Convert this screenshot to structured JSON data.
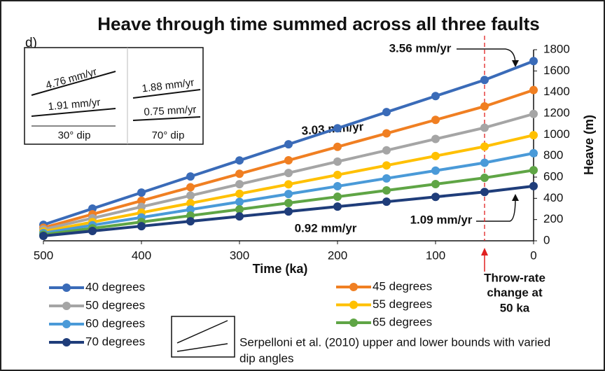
{
  "chart_data": {
    "type": "line",
    "title": "Heave through time summed across all three faults",
    "panel_label": "d)",
    "x_label": "Time (ka)",
    "y_label": "Heave (m)",
    "x": [
      500,
      450,
      400,
      350,
      300,
      250,
      200,
      150,
      100,
      50,
      0
    ],
    "xlim": [
      500,
      0
    ],
    "xticks": [
      500,
      400,
      300,
      200,
      100,
      0
    ],
    "ylim": [
      0,
      1800
    ],
    "yticks": [
      0,
      200,
      400,
      600,
      800,
      1000,
      1200,
      1400,
      1600,
      1800
    ],
    "series": [
      {
        "name": "40 degrees",
        "color": "#3a6bb8",
        "values": [
          151,
          303,
          454,
          606,
          757,
          909,
          1060,
          1212,
          1363,
          1515,
          1693
        ]
      },
      {
        "name": "45 degrees",
        "color": "#f07f22",
        "values": [
          123,
          250,
          377,
          504,
          631,
          758,
          885,
          1012,
          1139,
          1266,
          1420
        ]
      },
      {
        "name": "50 degrees",
        "color": "#a5a5a5",
        "values": [
          107,
          213,
          320,
          426,
          533,
          639,
          746,
          852,
          959,
          1065,
          1195
        ]
      },
      {
        "name": "55 degrees",
        "color": "#ffc000",
        "values": [
          87,
          176,
          265,
          354,
          443,
          532,
          621,
          710,
          799,
          888,
          995
        ]
      },
      {
        "name": "60 degrees",
        "color": "#4a9ad8",
        "values": [
          73,
          147,
          220,
          294,
          367,
          441,
          514,
          588,
          661,
          735,
          825
        ]
      },
      {
        "name": "65 degrees",
        "color": "#5fa545",
        "values": [
          58,
          118,
          177,
          237,
          296,
          356,
          415,
          475,
          534,
          593,
          665
        ]
      },
      {
        "name": "70 degrees",
        "color": "#1f3d7a",
        "values": [
          46,
          92,
          138,
          184,
          230,
          276,
          322,
          368,
          414,
          460,
          515
        ]
      }
    ],
    "annotations": {
      "top_recent": "3.56 mm/yr",
      "top_old": "3.03 mm/yr",
      "bottom_old": "0.92 mm/yr",
      "bottom_recent": "1.09 mm/yr",
      "change": [
        "Throw-rate",
        "change at",
        "50 ka"
      ]
    },
    "inset": {
      "left": {
        "upper": "4.76 mm/yr",
        "lower": "1.91 mm/yr",
        "dip": "30° dip"
      },
      "right": {
        "upper": "1.88 mm/yr",
        "lower": "0.75 mm/yr",
        "dip": "70° dip"
      }
    },
    "bounds_legend": [
      "Serpelloni et al. (2010) upper and lower bounds with varied",
      "dip angles"
    ]
  }
}
